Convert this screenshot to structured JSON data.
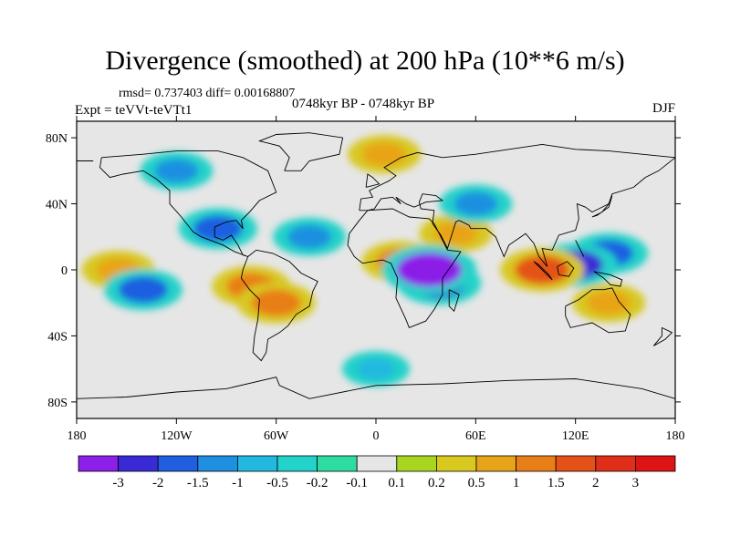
{
  "title": "Divergence (smoothed) at 200 hPa (10**6 m/s)",
  "stats_line": "rmsd= 0.737403 diff= 0.00168807",
  "experiment": "Expt = teVVt-teVTt1",
  "period": "0748kyr BP - 0748kyr BP",
  "season": "DJF",
  "axes": {
    "lat_ticks": [
      {
        "value": 80,
        "label": "80N"
      },
      {
        "value": 40,
        "label": "40N"
      },
      {
        "value": 0,
        "label": "0"
      },
      {
        "value": -40,
        "label": "40S"
      },
      {
        "value": -80,
        "label": "80S"
      }
    ],
    "lon_ticks": [
      {
        "value": -180,
        "label": "180"
      },
      {
        "value": -120,
        "label": "120W"
      },
      {
        "value": -60,
        "label": "60W"
      },
      {
        "value": 0,
        "label": "0"
      },
      {
        "value": 60,
        "label": "60E"
      },
      {
        "value": 120,
        "label": "120E"
      },
      {
        "value": 180,
        "label": "180"
      }
    ],
    "lon_range": [
      -180,
      180
    ],
    "lat_range": [
      -90,
      90
    ]
  },
  "colorbar": {
    "colors": [
      "#8c1fe8",
      "#3a2ad6",
      "#1f5fe0",
      "#1f90e0",
      "#22b8e0",
      "#23d2c8",
      "#2fdca0",
      "#e6e6e6",
      "#a8d61e",
      "#d8c820",
      "#e8a418",
      "#e87e18",
      "#e45218",
      "#e02e18",
      "#dc1414"
    ],
    "labels": [
      "-3",
      "-2",
      "-1.5",
      "-1",
      "-0.5",
      "-0.2",
      "-0.1",
      "0.1",
      "0.2",
      "0.5",
      "1",
      "1.5",
      "2",
      "3"
    ]
  },
  "chart_data": {
    "type": "heatmap",
    "title": "Divergence (smoothed) at 200 hPa (10**6 m/s)",
    "xlabel": "",
    "ylabel": "",
    "xlim": [
      -180,
      180
    ],
    "ylim": [
      -90,
      90
    ],
    "levels": [
      -3,
      -2,
      -1.5,
      -1,
      -0.5,
      -0.2,
      -0.1,
      0.1,
      0.2,
      0.5,
      1,
      1.5,
      2,
      3
    ],
    "features": [
      {
        "lon": 32,
        "lat": 0,
        "value": -3
      },
      {
        "lon": 38,
        "lat": -8,
        "value": -2
      },
      {
        "lon": 120,
        "lat": 3,
        "value": -2
      },
      {
        "lon": 140,
        "lat": 10,
        "value": -1.5
      },
      {
        "lon": -140,
        "lat": -12,
        "value": -1.5
      },
      {
        "lon": -95,
        "lat": 25,
        "value": -1.5
      },
      {
        "lon": 100,
        "lat": 0,
        "value": 2
      },
      {
        "lon": -75,
        "lat": -10,
        "value": 1.5
      },
      {
        "lon": -60,
        "lat": -20,
        "value": 1.5
      },
      {
        "lon": 15,
        "lat": 5,
        "value": 1.5
      },
      {
        "lon": 5,
        "lat": 70,
        "value": 1
      },
      {
        "lon": -155,
        "lat": 0,
        "value": 1
      },
      {
        "lon": 48,
        "lat": 22,
        "value": 1
      },
      {
        "lon": 140,
        "lat": -20,
        "value": 1
      },
      {
        "lon": -120,
        "lat": 60,
        "value": -1
      },
      {
        "lon": -40,
        "lat": 20,
        "value": -1
      },
      {
        "lon": 60,
        "lat": 40,
        "value": -1
      },
      {
        "lon": 0,
        "lat": -60,
        "value": -0.5
      }
    ]
  }
}
